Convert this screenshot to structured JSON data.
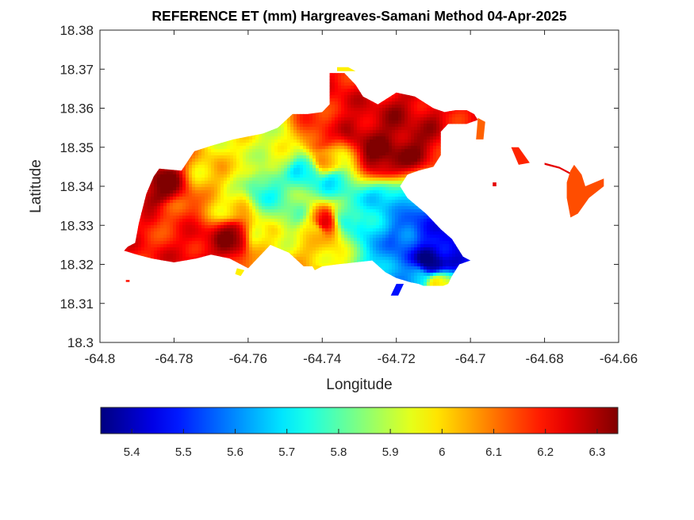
{
  "chart_data": {
    "type": "heatmap",
    "title": "REFERENCE ET (mm) Hargreaves-Samani Method  04-Apr-2025",
    "xlabel": "Longitude",
    "ylabel": "Latitude",
    "xlim": [
      -64.8,
      -64.66
    ],
    "ylim": [
      18.3,
      18.38
    ],
    "x_ticks": [
      -64.8,
      -64.78,
      -64.76,
      -64.74,
      -64.72,
      -64.7,
      -64.68,
      -64.66
    ],
    "x_tick_labels": [
      "-64.8",
      "-64.78",
      "-64.76",
      "-64.74",
      "-64.72",
      "-64.7",
      "-64.68",
      "-64.66"
    ],
    "y_ticks": [
      18.3,
      18.31,
      18.32,
      18.33,
      18.34,
      18.35,
      18.36,
      18.37,
      18.38
    ],
    "y_tick_labels": [
      "18.3",
      "18.31",
      "18.32",
      "18.33",
      "18.34",
      "18.35",
      "18.36",
      "18.37",
      "18.38"
    ],
    "colormap": "jet",
    "colorbar": {
      "orientation": "horizontal",
      "placement": "bottom",
      "clim": [
        5.34,
        6.34
      ],
      "ticks": [
        5.4,
        5.5,
        5.6,
        5.7,
        5.8,
        5.9,
        6.0,
        6.1,
        6.2,
        6.3
      ],
      "tick_labels": [
        "5.4",
        "5.5",
        "5.6",
        "5.7",
        "5.8",
        "5.9",
        "6",
        "6.1",
        "6.2",
        "6.3"
      ]
    },
    "grid": false,
    "island_outline": [
      [
        -64.7935,
        18.3235
      ],
      [
        -64.7925,
        18.3245
      ],
      [
        -64.7905,
        18.3255
      ],
      [
        -64.7895,
        18.3305
      ],
      [
        -64.7875,
        18.338
      ],
      [
        -64.7855,
        18.3425
      ],
      [
        -64.784,
        18.3445
      ],
      [
        -64.778,
        18.344
      ],
      [
        -64.7745,
        18.349
      ],
      [
        -64.7695,
        18.3505
      ],
      [
        -64.764,
        18.352
      ],
      [
        -64.756,
        18.3535
      ],
      [
        -64.752,
        18.355
      ],
      [
        -64.748,
        18.3585
      ],
      [
        -64.744,
        18.3585
      ],
      [
        -64.74,
        18.359
      ],
      [
        -64.738,
        18.361
      ],
      [
        -64.738,
        18.369
      ],
      [
        -64.734,
        18.369
      ],
      [
        -64.731,
        18.366
      ],
      [
        -64.729,
        18.363
      ],
      [
        -64.725,
        18.361
      ],
      [
        -64.72,
        18.364
      ],
      [
        -64.715,
        18.363
      ],
      [
        -64.71,
        18.36
      ],
      [
        -64.707,
        18.359
      ],
      [
        -64.704,
        18.3595
      ],
      [
        -64.701,
        18.3595
      ],
      [
        -64.699,
        18.3585
      ],
      [
        -64.698,
        18.357
      ],
      [
        -64.701,
        18.356
      ],
      [
        -64.706,
        18.356
      ],
      [
        -64.708,
        18.354
      ],
      [
        -64.708,
        18.348
      ],
      [
        -64.71,
        18.345
      ],
      [
        -64.714,
        18.344
      ],
      [
        -64.717,
        18.343
      ],
      [
        -64.719,
        18.34
      ],
      [
        -64.717,
        18.337
      ],
      [
        -64.712,
        18.333
      ],
      [
        -64.708,
        18.329
      ],
      [
        -64.705,
        18.3265
      ],
      [
        -64.702,
        18.322
      ],
      [
        -64.7,
        18.321
      ],
      [
        -64.703,
        18.32
      ],
      [
        -64.705,
        18.317
      ],
      [
        -64.706,
        18.315
      ],
      [
        -64.71,
        18.3135
      ],
      [
        -64.714,
        18.315
      ],
      [
        -64.7165,
        18.3155
      ],
      [
        -64.72,
        18.3165
      ],
      [
        -64.723,
        18.318
      ],
      [
        -64.7265,
        18.321
      ],
      [
        -64.731,
        18.3205
      ],
      [
        -64.736,
        18.32
      ],
      [
        -64.74,
        18.3195
      ],
      [
        -64.745,
        18.3195
      ],
      [
        -64.749,
        18.323
      ],
      [
        -64.754,
        18.325
      ],
      [
        -64.756,
        18.323
      ],
      [
        -64.76,
        18.319
      ],
      [
        -64.765,
        18.3215
      ],
      [
        -64.77,
        18.3225
      ],
      [
        -64.774,
        18.3215
      ],
      [
        -64.78,
        18.3205
      ],
      [
        -64.786,
        18.3215
      ],
      [
        -64.79,
        18.3225
      ],
      [
        -64.7935,
        18.3235
      ]
    ],
    "value_anchors": [
      {
        "x": -64.711,
        "y": 18.321,
        "v": 5.34
      },
      {
        "x": -64.706,
        "y": 18.324,
        "v": 5.42
      },
      {
        "x": -64.718,
        "y": 18.327,
        "v": 5.55
      },
      {
        "x": -64.712,
        "y": 18.329,
        "v": 5.5
      },
      {
        "x": -64.727,
        "y": 18.33,
        "v": 5.68
      },
      {
        "x": -64.723,
        "y": 18.336,
        "v": 5.66
      },
      {
        "x": -64.734,
        "y": 18.333,
        "v": 5.78
      },
      {
        "x": -64.737,
        "y": 18.341,
        "v": 5.74
      },
      {
        "x": -64.745,
        "y": 18.344,
        "v": 5.72
      },
      {
        "x": -64.756,
        "y": 18.34,
        "v": 5.76
      },
      {
        "x": -64.749,
        "y": 18.334,
        "v": 5.82
      },
      {
        "x": -64.742,
        "y": 18.329,
        "v": 5.96
      },
      {
        "x": -64.744,
        "y": 18.321,
        "v": 6.02
      },
      {
        "x": -64.756,
        "y": 18.326,
        "v": 5.98
      },
      {
        "x": -64.765,
        "y": 18.336,
        "v": 5.98
      },
      {
        "x": -64.77,
        "y": 18.343,
        "v": 6.02
      },
      {
        "x": -64.762,
        "y": 18.347,
        "v": 5.96
      },
      {
        "x": -64.752,
        "y": 18.348,
        "v": 5.92
      },
      {
        "x": -64.765,
        "y": 18.327,
        "v": 6.3
      },
      {
        "x": -64.784,
        "y": 18.34,
        "v": 6.32
      },
      {
        "x": -64.788,
        "y": 18.329,
        "v": 6.2
      },
      {
        "x": -64.781,
        "y": 18.333,
        "v": 6.16
      },
      {
        "x": -64.773,
        "y": 18.324,
        "v": 6.24
      },
      {
        "x": -64.74,
        "y": 18.331,
        "v": 6.24
      },
      {
        "x": -64.724,
        "y": 18.348,
        "v": 6.34
      },
      {
        "x": -64.718,
        "y": 18.352,
        "v": 6.32
      },
      {
        "x": -64.73,
        "y": 18.355,
        "v": 6.28
      },
      {
        "x": -64.734,
        "y": 18.362,
        "v": 6.22
      },
      {
        "x": -64.741,
        "y": 18.353,
        "v": 6.18
      },
      {
        "x": -64.739,
        "y": 18.347,
        "v": 6.02
      },
      {
        "x": -64.713,
        "y": 18.358,
        "v": 6.26
      },
      {
        "x": -64.705,
        "y": 18.358,
        "v": 6.22
      },
      {
        "x": -64.709,
        "y": 18.315,
        "v": 5.98
      },
      {
        "x": -64.715,
        "y": 18.317,
        "v": 5.62
      }
    ],
    "separate_patches": [
      {
        "points": [
          [
            -64.736,
            18.3705
          ],
          [
            -64.733,
            18.3705
          ],
          [
            -64.731,
            18.3695
          ],
          [
            -64.736,
            18.3695
          ]
        ],
        "v": 5.98
      },
      {
        "points": [
          [
            -64.72,
            18.315
          ],
          [
            -64.718,
            18.315
          ],
          [
            -64.7195,
            18.312
          ],
          [
            -64.7215,
            18.312
          ]
        ],
        "v": 5.48
      },
      {
        "points": [
          [
            -64.698,
            18.3575
          ],
          [
            -64.696,
            18.3565
          ],
          [
            -64.6965,
            18.352
          ],
          [
            -64.6985,
            18.352
          ]
        ],
        "v": 6.12
      },
      {
        "points": [
          [
            -64.689,
            18.35
          ],
          [
            -64.687,
            18.35
          ],
          [
            -64.684,
            18.346
          ],
          [
            -64.687,
            18.3455
          ]
        ],
        "v": 6.18
      },
      {
        "points": [
          [
            -64.694,
            18.341
          ],
          [
            -64.693,
            18.341
          ],
          [
            -64.693,
            18.34
          ],
          [
            -64.694,
            18.34
          ]
        ],
        "v": 6.24
      },
      {
        "points": [
          [
            -64.68,
            18.346
          ],
          [
            -64.676,
            18.345
          ],
          [
            -64.673,
            18.3435
          ],
          [
            -64.673,
            18.343
          ],
          [
            -64.676,
            18.3445
          ],
          [
            -64.68,
            18.3455
          ]
        ],
        "v": 6.24
      },
      {
        "points": [
          [
            -64.672,
            18.3455
          ],
          [
            -64.67,
            18.343
          ],
          [
            -64.669,
            18.34
          ],
          [
            -64.664,
            18.342
          ],
          [
            -64.664,
            18.34
          ],
          [
            -64.668,
            18.337
          ],
          [
            -64.671,
            18.333
          ],
          [
            -64.673,
            18.332
          ],
          [
            -64.674,
            18.337
          ],
          [
            -64.674,
            18.341
          ],
          [
            -64.673,
            18.344
          ]
        ],
        "v": 6.14
      },
      {
        "points": [
          [
            -64.793,
            18.316
          ],
          [
            -64.792,
            18.316
          ],
          [
            -64.792,
            18.3155
          ],
          [
            -64.793,
            18.3155
          ]
        ],
        "v": 6.2
      },
      {
        "points": [
          [
            -64.763,
            18.319
          ],
          [
            -64.761,
            18.3185
          ],
          [
            -64.762,
            18.317
          ],
          [
            -64.7635,
            18.3175
          ]
        ],
        "v": 5.98
      },
      {
        "points": [
          [
            -64.743,
            18.32
          ],
          [
            -64.74,
            18.3195
          ],
          [
            -64.742,
            18.3185
          ]
        ],
        "v": 6.0
      }
    ]
  }
}
